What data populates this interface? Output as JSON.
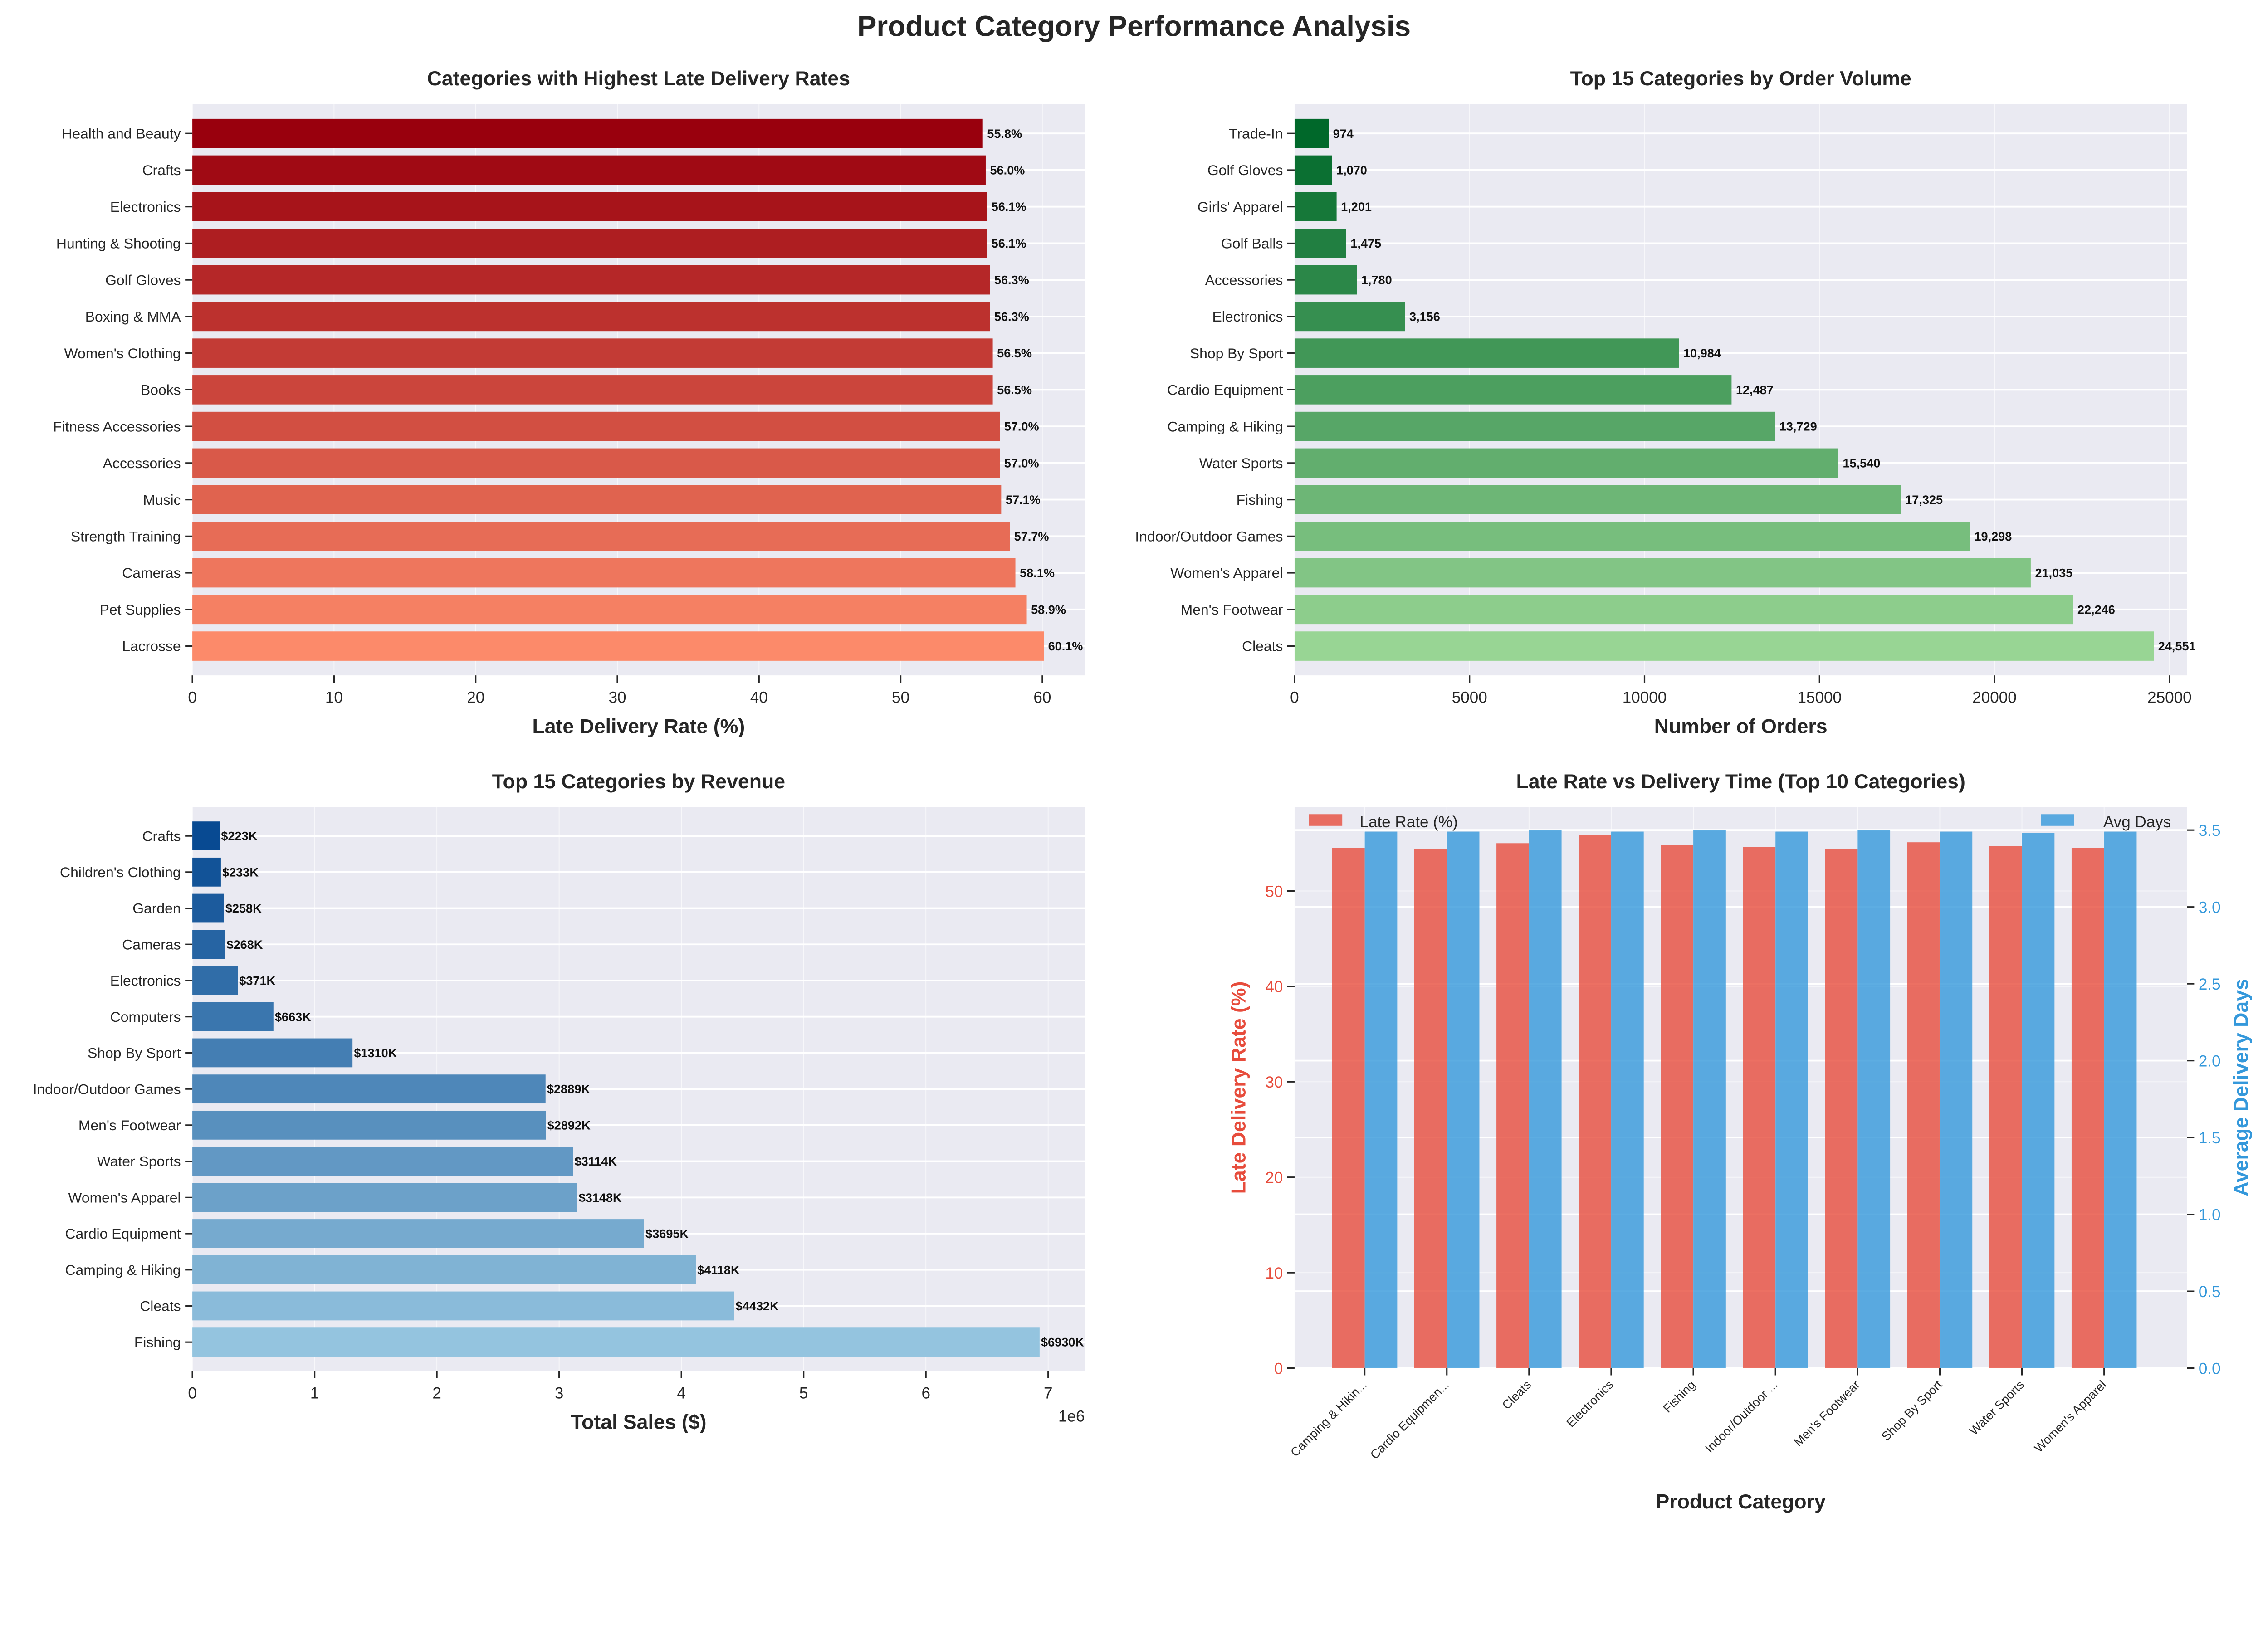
{
  "title": "Product Category Performance Analysis",
  "chart_data": [
    {
      "type": "bar",
      "orientation": "horizontal",
      "title": "Categories with Highest Late Delivery Rates",
      "xlabel": "Late Delivery Rate (%)",
      "ylabel": "",
      "xlim": [
        0,
        63
      ],
      "xticks": [
        "0",
        "10",
        "20",
        "30",
        "40",
        "50",
        "60"
      ],
      "grid": true,
      "categories": [
        "Health and Beauty",
        "Crafts",
        "Electronics",
        "Hunting & Shooting",
        "Golf Gloves",
        "Boxing & MMA",
        "Women's Clothing",
        "Books ",
        "Fitness Accessories",
        "Accessories",
        "Music",
        "Strength Training",
        "Cameras ",
        "Pet Supplies",
        "Lacrosse"
      ],
      "values": [
        55.8,
        56.0,
        56.1,
        56.1,
        56.3,
        56.3,
        56.5,
        56.5,
        57.0,
        57.0,
        57.1,
        57.7,
        58.1,
        58.9,
        60.1
      ],
      "labels": [
        "55.8%",
        "56.0%",
        "56.1%",
        "56.1%",
        "56.3%",
        "56.3%",
        "56.5%",
        "56.5%",
        "57.0%",
        "57.0%",
        "57.1%",
        "57.7%",
        "58.1%",
        "58.9%",
        "60.1%"
      ],
      "colormap": "Reds",
      "colors": [
        "#99000d",
        "#fc8a6a"
      ]
    },
    {
      "type": "bar",
      "orientation": "horizontal",
      "title": "Top 15 Categories by Order Volume",
      "xlabel": "Number of Orders",
      "ylabel": "",
      "xlim": [
        0,
        25500
      ],
      "xticks": [
        "0",
        "5000",
        "10000",
        "15000",
        "20000",
        "25000"
      ],
      "grid": true,
      "categories": [
        "Trade-In",
        "Golf Gloves",
        "Girls' Apparel",
        "Golf Balls",
        "Accessories",
        "Electronics",
        "Shop By Sport",
        "Cardio Equipment",
        "Camping & Hiking",
        "Water Sports",
        "Fishing",
        "Indoor/Outdoor Games",
        "Women's Apparel",
        "Men's Footwear",
        "Cleats"
      ],
      "values": [
        974,
        1070,
        1201,
        1475,
        1780,
        3156,
        10984,
        12487,
        13729,
        15540,
        17325,
        19298,
        21035,
        22246,
        24551
      ],
      "labels": [
        "974",
        "1,070",
        "1,201",
        "1,475",
        "1,780",
        "3,156",
        "10,984",
        "12,487",
        "13,729",
        "15,540",
        "17,325",
        "19,298",
        "21,035",
        "22,246",
        "24,551"
      ],
      "colormap": "Greens",
      "colors": [
        "#00682a",
        "#98d594"
      ]
    },
    {
      "type": "bar",
      "orientation": "horizontal",
      "title": "Top 15 Categories by Revenue",
      "xlabel": "Total Sales ($)",
      "ylabel": "",
      "xlim": [
        0,
        7300000
      ],
      "xticks": [
        "0",
        "1",
        "2",
        "3",
        "4",
        "5",
        "6",
        "7"
      ],
      "xscale_label": "1e6",
      "grid": true,
      "categories": [
        "Crafts",
        "Children's Clothing",
        "Garden",
        "Cameras ",
        "Electronics",
        "Computers",
        "Shop By Sport",
        "Indoor/Outdoor Games",
        "Men's Footwear",
        "Water Sports",
        "Women's Apparel",
        "Cardio Equipment",
        "Camping & Hiking",
        "Cleats",
        "Fishing"
      ],
      "values": [
        223000,
        233000,
        258000,
        268000,
        371000,
        663000,
        1310000,
        2889000,
        2892000,
        3114000,
        3148000,
        3695000,
        4118000,
        4432000,
        6930000
      ],
      "labels": [
        "$223K",
        "$233K",
        "$258K",
        "$268K",
        "$371K",
        "$663K",
        "$1310K",
        "$2889K",
        "$2892K",
        "$3114K",
        "$3148K",
        "$3695K",
        "$4118K",
        "$4432K",
        "$6930K"
      ],
      "colormap": "Blues",
      "colors": [
        "#084a92",
        "#94c4df"
      ]
    },
    {
      "type": "bar",
      "orientation": "vertical",
      "title": "Late Rate vs Delivery Time (Top 10 Categories)",
      "xlabel": "Product Category",
      "ylabel": "Late Delivery Rate (%)",
      "y2label": "Average Delivery Days",
      "ylim": [
        0,
        58.8
      ],
      "y2lim": [
        0,
        3.65
      ],
      "yticks": [
        "0",
        "10",
        "20",
        "30",
        "40",
        "50"
      ],
      "y2ticks": [
        "0.0",
        "0.5",
        "1.0",
        "1.5",
        "2.0",
        "2.5",
        "3.0",
        "3.5"
      ],
      "grid": true,
      "legend": "top (Late Rate left, Avg Days right)",
      "categories": [
        "Camping & Hikin...",
        "Cardio Equipmen...",
        "Cleats",
        "Electronics",
        "Fishing",
        "Indoor/Outdoor ...",
        "Men's Footwear",
        "Shop By Sport",
        "Water Sports",
        "Women's Apparel"
      ],
      "series": [
        {
          "name": "Late Rate (%)",
          "axis": "left",
          "color": "#e74c3c",
          "values": [
            54.5,
            54.4,
            55.0,
            55.9,
            54.8,
            54.6,
            54.4,
            55.1,
            54.7,
            54.5
          ]
        },
        {
          "name": "Avg Days",
          "axis": "right",
          "color": "#3498db",
          "values": [
            3.49,
            3.49,
            3.5,
            3.49,
            3.5,
            3.49,
            3.5,
            3.49,
            3.48,
            3.49
          ]
        }
      ]
    }
  ]
}
